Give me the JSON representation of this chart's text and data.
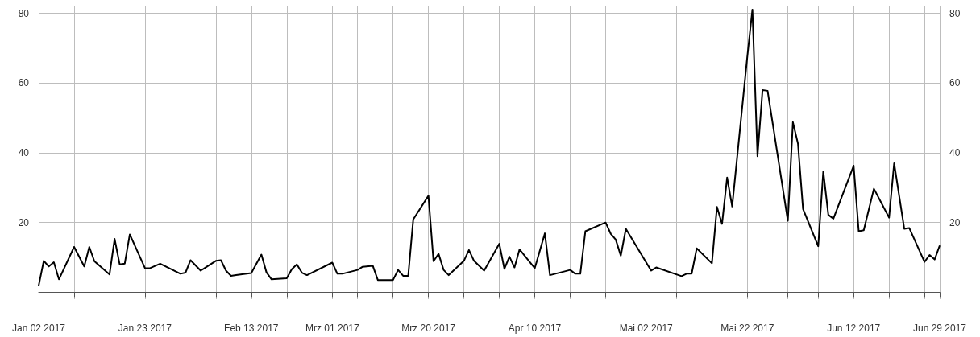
{
  "chart_data": {
    "type": "line",
    "x": [
      "2017-01-02",
      "2017-01-03",
      "2017-01-04",
      "2017-01-05",
      "2017-01-06",
      "2017-01-09",
      "2017-01-11",
      "2017-01-12",
      "2017-01-13",
      "2017-01-16",
      "2017-01-17",
      "2017-01-18",
      "2017-01-19",
      "2017-01-20",
      "2017-01-23",
      "2017-01-24",
      "2017-01-26",
      "2017-01-30",
      "2017-01-31",
      "2017-02-01",
      "2017-02-03",
      "2017-02-06",
      "2017-02-07",
      "2017-02-08",
      "2017-02-09",
      "2017-02-10",
      "2017-02-13",
      "2017-02-15",
      "2017-02-16",
      "2017-02-17",
      "2017-02-20",
      "2017-02-21",
      "2017-02-22",
      "2017-02-23",
      "2017-02-24",
      "2017-03-01",
      "2017-03-02",
      "2017-03-03",
      "2017-03-06",
      "2017-03-07",
      "2017-03-09",
      "2017-03-10",
      "2017-03-13",
      "2017-03-14",
      "2017-03-15",
      "2017-03-16",
      "2017-03-17",
      "2017-03-20",
      "2017-03-21",
      "2017-03-22",
      "2017-03-23",
      "2017-03-24",
      "2017-03-27",
      "2017-03-28",
      "2017-03-29",
      "2017-03-31",
      "2017-04-03",
      "2017-04-04",
      "2017-04-05",
      "2017-04-06",
      "2017-04-07",
      "2017-04-10",
      "2017-04-12",
      "2017-04-13",
      "2017-04-17",
      "2017-04-18",
      "2017-04-19",
      "2017-04-20",
      "2017-04-24",
      "2017-04-25",
      "2017-04-26",
      "2017-04-27",
      "2017-04-28",
      "2017-05-03",
      "2017-05-04",
      "2017-05-09",
      "2017-05-10",
      "2017-05-11",
      "2017-05-12",
      "2017-05-15",
      "2017-05-16",
      "2017-05-17",
      "2017-05-18",
      "2017-05-19",
      "2017-05-22",
      "2017-05-23",
      "2017-05-24",
      "2017-05-25",
      "2017-05-26",
      "2017-05-30",
      "2017-05-31",
      "2017-06-01",
      "2017-06-02",
      "2017-06-05",
      "2017-06-06",
      "2017-06-07",
      "2017-06-08",
      "2017-06-12",
      "2017-06-13",
      "2017-06-14",
      "2017-06-16",
      "2017-06-19",
      "2017-06-20",
      "2017-06-22",
      "2017-06-23",
      "2017-06-26",
      "2017-06-27",
      "2017-06-28",
      "2017-06-29"
    ],
    "series": [
      {
        "color": "#000000",
        "values": [
          1.9,
          9.0,
          7.4,
          8.6,
          3.7,
          13.0,
          7.4,
          13.0,
          8.9,
          5.1,
          15.3,
          8.0,
          8.2,
          16.6,
          6.9,
          6.9,
          8.2,
          5.3,
          5.6,
          9.2,
          6.2,
          9.0,
          9.2,
          6.2,
          4.7,
          4.9,
          5.5,
          10.8,
          5.7,
          3.7,
          4.0,
          6.6,
          8.0,
          5.6,
          4.9,
          8.5,
          5.3,
          5.3,
          6.4,
          7.3,
          7.6,
          3.5,
          3.5,
          6.4,
          4.7,
          4.7,
          20.9,
          27.7,
          8.9,
          11.0,
          6.4,
          4.9,
          9.0,
          12.1,
          9.0,
          6.2,
          13.9,
          6.7,
          10.2,
          7.1,
          12.3,
          6.9,
          16.9,
          4.9,
          6.4,
          5.3,
          5.3,
          17.5,
          20.0,
          16.8,
          15.1,
          10.5,
          18.2,
          6.2,
          7.1,
          4.6,
          5.3,
          5.3,
          12.6,
          8.3,
          24.5,
          19.6,
          32.9,
          24.6,
          67.7,
          81.1,
          39.0,
          58.0,
          57.8,
          20.5,
          48.8,
          42.6,
          23.9,
          13.2,
          34.7,
          22.2,
          21.1,
          36.3,
          17.5,
          17.8,
          29.7,
          21.4,
          37.0,
          18.2,
          18.4,
          8.7,
          10.7,
          9.4,
          13.4
        ]
      }
    ],
    "xlim": [
      "2017-01-02",
      "2017-06-29"
    ],
    "xticks": [
      {
        "value": "2017-01-02",
        "label": "Jan 02 2017"
      },
      {
        "value": "2017-01-09",
        "label": null
      },
      {
        "value": "2017-01-16",
        "label": null
      },
      {
        "value": "2017-01-23",
        "label": "Jan 23 2017"
      },
      {
        "value": "2017-01-30",
        "label": null
      },
      {
        "value": "2017-02-06",
        "label": null
      },
      {
        "value": "2017-02-13",
        "label": "Feb 13 2017"
      },
      {
        "value": "2017-02-20",
        "label": null
      },
      {
        "value": "2017-03-01",
        "label": "Mrz 01 2017"
      },
      {
        "value": "2017-03-06",
        "label": null
      },
      {
        "value": "2017-03-13",
        "label": null
      },
      {
        "value": "2017-03-20",
        "label": "Mrz 20 2017"
      },
      {
        "value": "2017-03-27",
        "label": null
      },
      {
        "value": "2017-04-03",
        "label": null
      },
      {
        "value": "2017-04-10",
        "label": "Apr 10 2017"
      },
      {
        "value": "2017-04-17",
        "label": null
      },
      {
        "value": "2017-04-24",
        "label": null
      },
      {
        "value": "2017-05-02",
        "label": "Mai 02 2017"
      },
      {
        "value": "2017-05-08",
        "label": null
      },
      {
        "value": "2017-05-15",
        "label": null
      },
      {
        "value": "2017-05-22",
        "label": "Mai 22 2017"
      },
      {
        "value": "2017-05-30",
        "label": null
      },
      {
        "value": "2017-06-05",
        "label": null
      },
      {
        "value": "2017-06-12",
        "label": "Jun 12 2017"
      },
      {
        "value": "2017-06-19",
        "label": null
      },
      {
        "value": "2017-06-26",
        "label": null
      },
      {
        "value": "2017-06-29",
        "label": "Jun 29 2017"
      }
    ],
    "ylim": [
      -2,
      82
    ],
    "yticks": [
      20,
      40,
      60,
      80
    ],
    "y2lim": [
      -2,
      82
    ],
    "y2ticks": [
      20,
      40,
      60,
      80
    ],
    "grid": true,
    "marker": "none",
    "line_style": "solid"
  }
}
